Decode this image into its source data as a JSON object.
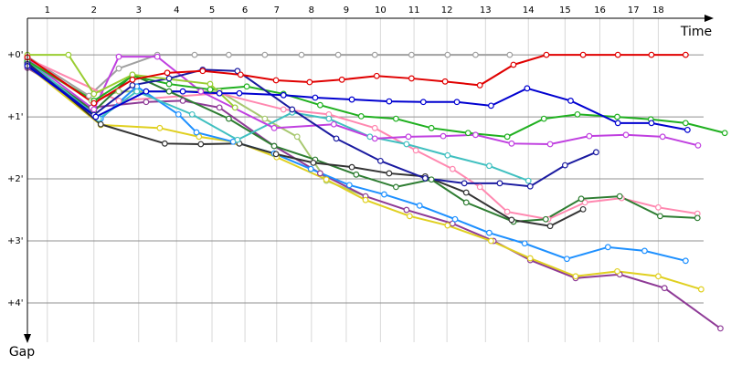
{
  "chart_data": {
    "type": "line",
    "x_label": "Time",
    "y_label": "Gap",
    "xlim": [
      0,
      11.32
    ],
    "ylim": [
      -0.59,
      4.5
    ],
    "y_inverted": true,
    "grid": true,
    "xticks": [
      {
        "value": 0.32,
        "label": "1"
      },
      {
        "value": 1.07,
        "label": "2"
      },
      {
        "value": 1.79,
        "label": "3"
      },
      {
        "value": 2.4,
        "label": "4"
      },
      {
        "value": 2.97,
        "label": "5"
      },
      {
        "value": 3.5,
        "label": "6"
      },
      {
        "value": 4.01,
        "label": "7"
      },
      {
        "value": 4.57,
        "label": "8"
      },
      {
        "value": 5.13,
        "label": "9"
      },
      {
        "value": 5.68,
        "label": "10"
      },
      {
        "value": 6.22,
        "label": "11"
      },
      {
        "value": 6.75,
        "label": "12"
      },
      {
        "value": 7.37,
        "label": "13"
      },
      {
        "value": 8.06,
        "label": "14"
      },
      {
        "value": 8.65,
        "label": "15"
      },
      {
        "value": 9.21,
        "label": "16"
      },
      {
        "value": 9.75,
        "label": "17"
      },
      {
        "value": 10.15,
        "label": "18"
      }
    ],
    "yticks": [
      {
        "value": 0,
        "label": "+0'"
      },
      {
        "value": 1,
        "label": "+1'"
      },
      {
        "value": 2,
        "label": "+2'"
      },
      {
        "value": 3,
        "label": "+3'"
      },
      {
        "value": 4,
        "label": "+4'"
      }
    ],
    "series": [
      {
        "color": "#a0a0a0",
        "x": [
          0,
          0.99,
          1.47,
          2.09,
          2.69,
          3.24,
          3.82,
          4.41,
          5.0,
          5.59,
          6.18,
          6.76,
          7.21,
          7.76
        ],
        "values": [
          0.03,
          0.66,
          0.22,
          0,
          0,
          0,
          0,
          0,
          0,
          0,
          0,
          0,
          0,
          0
        ]
      },
      {
        "color": "#a8c870",
        "x": [
          0,
          1.03,
          1.47,
          3.09,
          3.82,
          4.34,
          4.81,
          5.44
        ],
        "values": [
          0.09,
          0.74,
          0.59,
          0.59,
          1.03,
          1.32,
          2.03,
          2.28
        ]
      },
      {
        "color": "#ff88b0",
        "x": [
          0,
          1.47,
          3.09,
          4.12,
          4.85,
          5.59,
          6.25,
          6.84,
          7.28,
          7.72,
          8.38,
          8.97,
          9.56,
          10.15,
          10.78
        ],
        "values": [
          0.06,
          0.74,
          0.62,
          0.88,
          0.96,
          1.18,
          1.54,
          1.84,
          2.13,
          2.53,
          2.65,
          2.38,
          2.31,
          2.46,
          2.56
        ]
      },
      {
        "color": "#8e3a96",
        "x": [
          0,
          1.03,
          1.91,
          2.5,
          3.09,
          3.97,
          4.71,
          5.44,
          6.1,
          6.84,
          7.5,
          8.09,
          8.82,
          9.53,
          10.25,
          11.15
        ],
        "values": [
          0.21,
          0.85,
          0.76,
          0.74,
          0.85,
          1.47,
          1.91,
          2.28,
          2.5,
          2.72,
          3.0,
          3.31,
          3.6,
          3.54,
          3.76,
          4.41
        ]
      },
      {
        "color": "#e0d020",
        "x": [
          0,
          1.18,
          2.13,
          2.76,
          3.38,
          4.01,
          4.81,
          5.44,
          6.15,
          6.76,
          7.46,
          8.09,
          8.82,
          9.49,
          10.15,
          10.84
        ],
        "values": [
          0.18,
          1.13,
          1.18,
          1.32,
          1.41,
          1.65,
          2.01,
          2.34,
          2.6,
          2.75,
          3.0,
          3.28,
          3.57,
          3.49,
          3.57,
          3.78
        ]
      },
      {
        "color": "#1e90ff",
        "x": [
          0,
          1.18,
          1.76,
          2.43,
          2.72,
          3.31,
          3.97,
          4.56,
          5.18,
          5.74,
          6.31,
          6.88,
          7.43,
          8.0,
          8.68,
          9.34,
          9.93,
          10.59
        ],
        "values": [
          0.16,
          1.03,
          0.51,
          0.96,
          1.25,
          1.4,
          1.59,
          1.84,
          2.1,
          2.25,
          2.43,
          2.65,
          2.87,
          3.04,
          3.29,
          3.1,
          3.16,
          3.32
        ]
      },
      {
        "color": "#2e7d32",
        "x": [
          0,
          1.07,
          1.69,
          2.28,
          3.24,
          3.97,
          4.63,
          5.29,
          5.93,
          6.5,
          7.06,
          7.82,
          8.34,
          8.91,
          9.53,
          10.18,
          10.78
        ],
        "values": [
          0.13,
          0.91,
          0.32,
          0.59,
          1.03,
          1.47,
          1.69,
          1.93,
          2.13,
          2.01,
          2.38,
          2.69,
          2.65,
          2.32,
          2.28,
          2.6,
          2.63
        ]
      },
      {
        "color": "#333333",
        "x": [
          0,
          1.18,
          2.21,
          2.79,
          3.41,
          4.0,
          4.6,
          5.22,
          5.82,
          6.4,
          7.06,
          7.79,
          8.41,
          8.94
        ],
        "values": [
          0.12,
          1.12,
          1.43,
          1.44,
          1.43,
          1.6,
          1.74,
          1.81,
          1.91,
          1.96,
          2.22,
          2.66,
          2.76,
          2.49
        ]
      },
      {
        "color": "#40c0c0",
        "x": [
          0,
          1.15,
          1.76,
          2.65,
          3.38,
          4.26,
          4.85,
          5.51,
          6.1,
          6.76,
          7.43,
          8.06
        ],
        "values": [
          0.09,
          1.03,
          0.59,
          0.96,
          1.37,
          0.93,
          1.03,
          1.32,
          1.44,
          1.62,
          1.79,
          2.03
        ]
      },
      {
        "color": "#c040e0",
        "x": [
          0,
          1.07,
          1.47,
          2.09,
          2.79,
          3.97,
          4.93,
          5.59,
          6.13,
          6.69,
          7.21,
          7.79,
          8.41,
          9.04,
          9.63,
          10.22,
          10.79
        ],
        "values": [
          0.07,
          0.88,
          0.03,
          0.03,
          0.59,
          1.18,
          1.12,
          1.35,
          1.32,
          1.31,
          1.29,
          1.43,
          1.44,
          1.31,
          1.29,
          1.32,
          1.46
        ]
      },
      {
        "color": "#20b020",
        "x": [
          0,
          1.07,
          1.69,
          2.28,
          2.94,
          3.53,
          4.12,
          4.71,
          5.37,
          5.93,
          6.5,
          7.09,
          7.72,
          8.31,
          8.85,
          9.49,
          10.03,
          10.59,
          11.22
        ],
        "values": [
          0.1,
          0.74,
          0.34,
          0.47,
          0.56,
          0.51,
          0.63,
          0.81,
          0.99,
          1.03,
          1.18,
          1.26,
          1.32,
          1.03,
          0.96,
          1.0,
          1.04,
          1.1,
          1.26
        ]
      },
      {
        "color": "#1a1aa0",
        "x": [
          0,
          1.07,
          1.69,
          2.28,
          2.82,
          3.38,
          4.26,
          4.97,
          5.68,
          6.4,
          7.03,
          7.6,
          8.09,
          8.65,
          9.15
        ],
        "values": [
          0.15,
          0.97,
          0.49,
          0.38,
          0.24,
          0.26,
          0.88,
          1.35,
          1.71,
          1.99,
          2.07,
          2.07,
          2.12,
          1.78,
          1.57
        ]
      },
      {
        "color": "#0000d0",
        "x": [
          0,
          1.1,
          1.91,
          2.5,
          3.09,
          3.41,
          4.12,
          4.63,
          5.22,
          5.82,
          6.37,
          6.91,
          7.46,
          8.04,
          8.74,
          9.5,
          10.04,
          10.62
        ],
        "values": [
          0.18,
          1.0,
          0.59,
          0.59,
          0.62,
          0.62,
          0.65,
          0.69,
          0.72,
          0.75,
          0.76,
          0.76,
          0.82,
          0.54,
          0.74,
          1.1,
          1.1,
          1.21
        ]
      },
      {
        "color": "#9acd32",
        "x": [
          0,
          0.66,
          1.07,
          1.69,
          2.94,
          3.34
        ],
        "values": [
          0,
          0,
          0.63,
          0.32,
          0.47,
          0.85
        ]
      },
      {
        "color": "#e00000",
        "x": [
          0,
          1.07,
          1.69,
          2.25,
          2.82,
          3.43,
          4.0,
          4.54,
          5.06,
          5.62,
          6.18,
          6.72,
          7.28,
          7.82,
          8.35,
          8.94,
          9.5,
          10.04,
          10.59
        ],
        "values": [
          0.04,
          0.78,
          0.4,
          0.29,
          0.26,
          0.32,
          0.41,
          0.44,
          0.4,
          0.34,
          0.38,
          0.43,
          0.49,
          0.16,
          0,
          0,
          0,
          0,
          0
        ]
      }
    ]
  }
}
